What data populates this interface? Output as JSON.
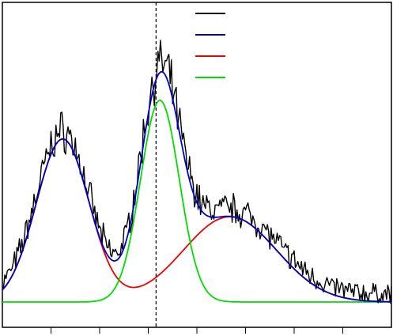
{
  "chart_data": {
    "type": "line",
    "title": "",
    "xlabel": "",
    "ylabel": "",
    "xlim": [
      0,
      100
    ],
    "ylim": [
      0,
      100
    ],
    "grid": false,
    "legend_position": "top-center",
    "x_major_ticks": [
      12.5,
      25,
      37.5,
      50,
      62.5,
      75,
      87.5
    ],
    "reference_line": {
      "x": 39.5,
      "style": "dashed",
      "color": "#000000"
    },
    "series": [
      {
        "key": "data",
        "kind": "noisy",
        "color": "#000000",
        "components": [
          {
            "a": 63,
            "mu": 15.5,
            "sigma": 6.8
          },
          {
            "a": 78,
            "mu": 40.5,
            "sigma": 5.0
          },
          {
            "a": 33,
            "mu": 58.5,
            "sigma": 12.0
          }
        ],
        "baseline": 3,
        "noise": 5
      },
      {
        "key": "envelope",
        "kind": "sum",
        "color": "#0000cc",
        "components": [
          {
            "a": 63,
            "mu": 15.5,
            "sigma": 6.8
          },
          {
            "a": 78,
            "mu": 40.5,
            "sigma": 5.0
          },
          {
            "a": 33,
            "mu": 58.5,
            "sigma": 12.0
          }
        ],
        "baseline": 0
      },
      {
        "key": "peak-red",
        "kind": "gaussians",
        "color": "#ee0000",
        "components": [
          {
            "a": 63,
            "mu": 15.5,
            "sigma": 6.8
          },
          {
            "a": 33,
            "mu": 58.5,
            "sigma": 12.0
          }
        ],
        "baseline": 0
      },
      {
        "key": "peak-green",
        "kind": "gaussians",
        "color": "#00dd00",
        "components": [
          {
            "a": 78,
            "mu": 40.5,
            "sigma": 5.0
          }
        ],
        "baseline": 0
      }
    ]
  }
}
